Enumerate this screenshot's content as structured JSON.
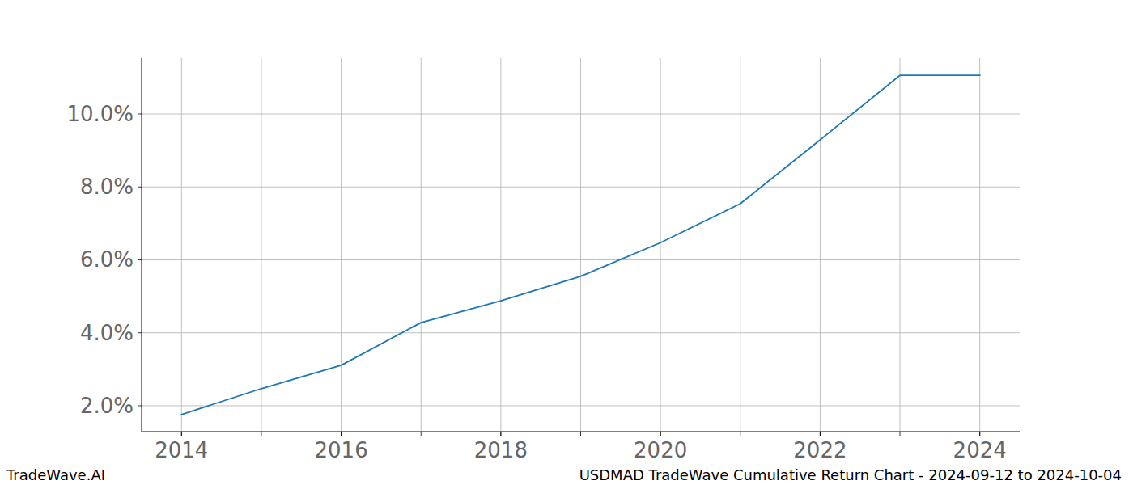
{
  "chart_data": {
    "type": "line",
    "title": "USDMAD TradeWave Cumulative Return Chart - 2024-09-12 to 2024-10-04",
    "watermark": "TradeWave.AI",
    "x": [
      2014,
      2015,
      2016,
      2017,
      2018,
      2019,
      2020,
      2021,
      2022,
      2023,
      2024
    ],
    "values": [
      1.76,
      2.47,
      3.11,
      4.28,
      4.88,
      5.55,
      6.47,
      7.54,
      9.29,
      11.06,
      11.06
    ],
    "color": "#1f77b4",
    "xlim": [
      2013.5,
      2024.5
    ],
    "xticks": [
      2014,
      2016,
      2018,
      2020,
      2022,
      2024
    ],
    "ylim": [
      1.29,
      11.53
    ],
    "yticks": [
      {
        "value": 2,
        "label": "2.0%"
      },
      {
        "value": 4,
        "label": "4.0%"
      },
      {
        "value": 6,
        "label": "6.0%"
      },
      {
        "value": 8,
        "label": "8.0%"
      },
      {
        "value": 10,
        "label": "10.0%"
      }
    ],
    "grid": true
  }
}
